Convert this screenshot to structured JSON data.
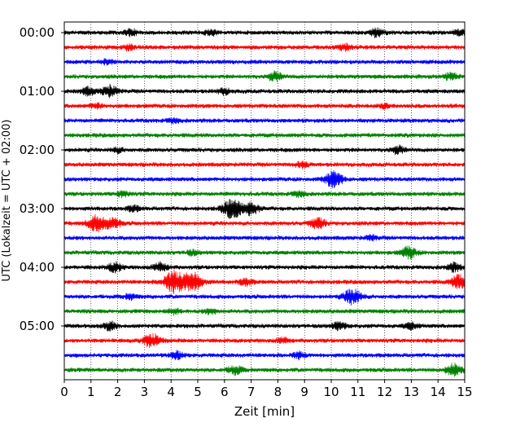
{
  "chart_data": {
    "type": "line",
    "subtype": "helicorder",
    "title": "",
    "xlabel": "Zeit  [min]",
    "ylabel": "UTC (Lokalzeit = UTC + 02:00)",
    "xlim": [
      0,
      15
    ],
    "x_ticks": [
      "0",
      "1",
      "2",
      "3",
      "4",
      "5",
      "6",
      "7",
      "8",
      "9",
      "10",
      "11",
      "12",
      "13",
      "14",
      "15"
    ],
    "y_tick_labels": [
      "00:00",
      "01:00",
      "02:00",
      "03:00",
      "04:00",
      "05:00"
    ],
    "y_tick_rows": [
      0,
      4,
      8,
      12,
      16,
      20
    ],
    "grid": "vertical dotted lines at each minute",
    "trace_colors": [
      "#000000",
      "#ff0000",
      "#0000ff",
      "#008000"
    ],
    "row_interval_min": 15,
    "rows": [
      {
        "start": "00:00",
        "bursts": [
          {
            "t": 2.5,
            "a": 1.8
          },
          {
            "t": 5.5,
            "a": 1.6
          },
          {
            "t": 11.7,
            "a": 2.5
          },
          {
            "t": 14.8,
            "a": 1.5
          }
        ]
      },
      {
        "start": "00:15",
        "bursts": [
          {
            "t": 2.4,
            "a": 1.5
          },
          {
            "t": 10.5,
            "a": 1.8
          }
        ]
      },
      {
        "start": "00:30",
        "bursts": [
          {
            "t": 1.6,
            "a": 1.3
          }
        ]
      },
      {
        "start": "00:45",
        "bursts": [
          {
            "t": 7.9,
            "a": 2.6
          },
          {
            "t": 14.5,
            "a": 2.2
          }
        ]
      },
      {
        "start": "01:00",
        "bursts": [
          {
            "t": 0.9,
            "a": 2.2
          },
          {
            "t": 1.7,
            "a": 3.2
          },
          {
            "t": 6.0,
            "a": 1.6
          }
        ]
      },
      {
        "start": "01:15",
        "bursts": [
          {
            "t": 1.2,
            "a": 1.4
          },
          {
            "t": 12.0,
            "a": 1.2
          }
        ]
      },
      {
        "start": "01:30",
        "bursts": [
          {
            "t": 4.1,
            "a": 1.3
          }
        ]
      },
      {
        "start": "01:45",
        "bursts": []
      },
      {
        "start": "02:00",
        "bursts": [
          {
            "t": 2.0,
            "a": 1.3
          },
          {
            "t": 12.5,
            "a": 2.2
          }
        ]
      },
      {
        "start": "02:15",
        "bursts": [
          {
            "t": 8.9,
            "a": 1.6
          }
        ]
      },
      {
        "start": "02:30",
        "bursts": [
          {
            "t": 10.1,
            "a": 4.6
          }
        ]
      },
      {
        "start": "02:45",
        "bursts": [
          {
            "t": 2.2,
            "a": 1.5
          },
          {
            "t": 8.8,
            "a": 1.6
          }
        ]
      },
      {
        "start": "03:00",
        "bursts": [
          {
            "t": 2.6,
            "a": 1.6
          },
          {
            "t": 6.3,
            "a": 5.5
          },
          {
            "t": 7.0,
            "a": 3.5
          }
        ]
      },
      {
        "start": "03:15",
        "bursts": [
          {
            "t": 1.2,
            "a": 4.5
          },
          {
            "t": 1.8,
            "a": 3.3
          },
          {
            "t": 9.5,
            "a": 3.0
          }
        ]
      },
      {
        "start": "03:30",
        "bursts": [
          {
            "t": 11.5,
            "a": 1.3
          }
        ]
      },
      {
        "start": "03:45",
        "bursts": [
          {
            "t": 4.8,
            "a": 1.3
          },
          {
            "t": 12.9,
            "a": 3.2
          }
        ]
      },
      {
        "start": "04:00",
        "bursts": [
          {
            "t": 1.9,
            "a": 2.6
          },
          {
            "t": 3.6,
            "a": 2.6
          },
          {
            "t": 14.6,
            "a": 2.3
          }
        ]
      },
      {
        "start": "04:15",
        "bursts": [
          {
            "t": 4.1,
            "a": 6.0
          },
          {
            "t": 4.8,
            "a": 6.0
          },
          {
            "t": 6.8,
            "a": 2.0
          },
          {
            "t": 14.8,
            "a": 4.0
          }
        ]
      },
      {
        "start": "04:30",
        "bursts": [
          {
            "t": 10.8,
            "a": 4.5
          },
          {
            "t": 2.5,
            "a": 1.5
          }
        ]
      },
      {
        "start": "04:45",
        "bursts": [
          {
            "t": 4.1,
            "a": 1.6
          },
          {
            "t": 5.5,
            "a": 1.4
          }
        ]
      },
      {
        "start": "05:00",
        "bursts": [
          {
            "t": 1.7,
            "a": 2.2
          },
          {
            "t": 10.3,
            "a": 2.3
          },
          {
            "t": 13.0,
            "a": 1.8
          }
        ]
      },
      {
        "start": "05:15",
        "bursts": [
          {
            "t": 3.3,
            "a": 4.0
          },
          {
            "t": 8.2,
            "a": 1.6
          }
        ]
      },
      {
        "start": "05:30",
        "bursts": [
          {
            "t": 4.2,
            "a": 2.0
          },
          {
            "t": 8.8,
            "a": 1.6
          }
        ]
      },
      {
        "start": "05:45",
        "bursts": [
          {
            "t": 6.4,
            "a": 2.5
          },
          {
            "t": 14.6,
            "a": 3.5
          }
        ]
      }
    ]
  }
}
